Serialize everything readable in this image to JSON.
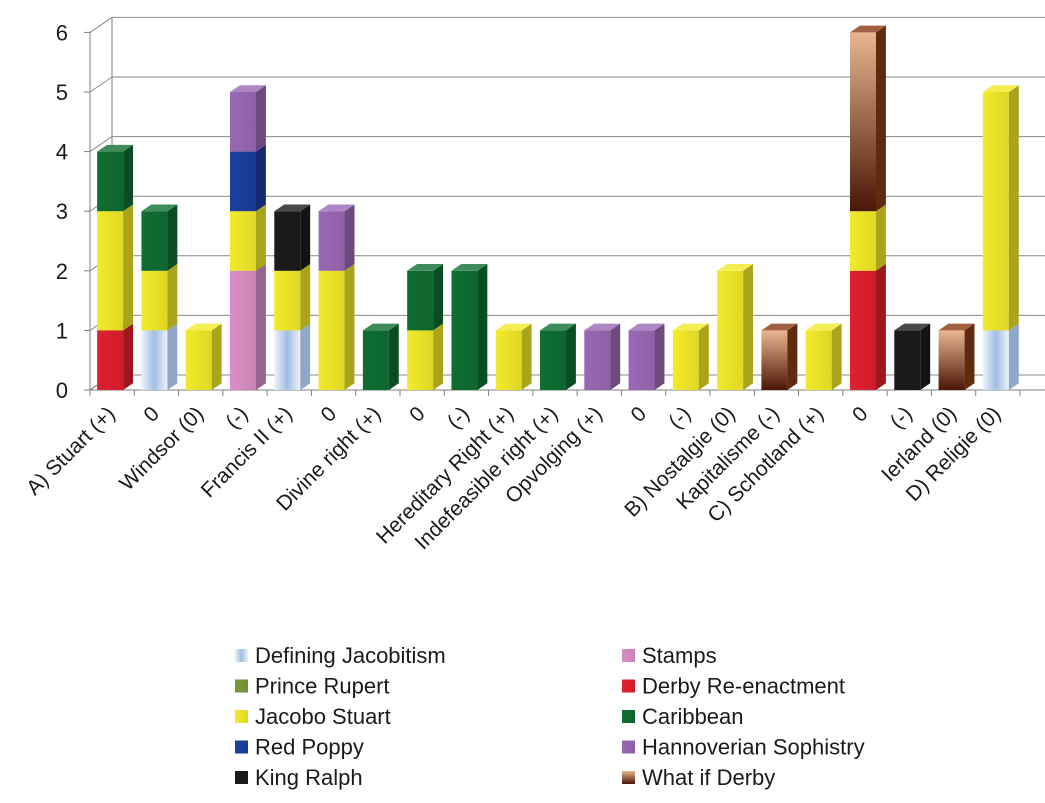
{
  "chart_data": {
    "type": "bar",
    "stacked": true,
    "three_d": true,
    "categories": [
      "A) Stuart (+)",
      "0",
      "Windsor (0)",
      "(-)",
      "Francis II (+)",
      "0",
      "Divine right (+)",
      "0",
      "(-)",
      "Hereditary Right (+)",
      "Indefeasible right (+)",
      "Opvolging (+)",
      "0",
      "(-)",
      "B) Nostalgie (0)",
      "Kapitalisme (-)",
      "C) Schotland (+)",
      "0",
      "(-)",
      "Ierland (0)",
      "D) Religie (0)"
    ],
    "ylim": [
      0,
      6
    ],
    "yticks": [
      0,
      1,
      2,
      3,
      4,
      5,
      6
    ],
    "grid": true,
    "legend_position": "bottom",
    "series": [
      {
        "name": "Defining Jacobitism",
        "color": "#c9d9ee",
        "values": [
          0,
          1,
          0,
          0,
          1,
          0,
          0,
          0,
          0,
          0,
          0,
          0,
          0,
          0,
          0,
          0,
          0,
          0,
          0,
          0,
          1
        ]
      },
      {
        "name": "Stamps",
        "color": "#d98fc6",
        "values": [
          0,
          0,
          0,
          2,
          0,
          0,
          0,
          0,
          0,
          0,
          0,
          0,
          0,
          0,
          0,
          0,
          0,
          0,
          0,
          0,
          0
        ]
      },
      {
        "name": "Prince Rupert",
        "color": "#7a9a3a",
        "values": [
          0,
          0,
          0,
          0,
          0,
          0,
          0,
          0,
          0,
          0,
          0,
          0,
          0,
          0,
          0,
          0,
          0,
          0,
          0,
          0,
          0
        ]
      },
      {
        "name": "Derby Re-enactment",
        "color": "#e0202e",
        "values": [
          1,
          0,
          0,
          0,
          0,
          0,
          0,
          0,
          0,
          0,
          0,
          0,
          0,
          0,
          0,
          0,
          0,
          2,
          0,
          0,
          0
        ]
      },
      {
        "name": "Jacobo Stuart",
        "color": "#f2ea28",
        "values": [
          2,
          1,
          1,
          1,
          1,
          2,
          0,
          1,
          0,
          1,
          0,
          0,
          0,
          1,
          2,
          0,
          1,
          1,
          0,
          0,
          4
        ]
      },
      {
        "name": "Caribbean",
        "color": "#0f6e32",
        "values": [
          1,
          1,
          0,
          0,
          0,
          0,
          1,
          1,
          2,
          0,
          1,
          0,
          0,
          0,
          0,
          0,
          0,
          0,
          0,
          0,
          0
        ]
      },
      {
        "name": "Red Poppy",
        "color": "#1c3f9e",
        "values": [
          0,
          0,
          0,
          1,
          0,
          0,
          0,
          0,
          0,
          0,
          0,
          0,
          0,
          0,
          0,
          0,
          0,
          0,
          0,
          0,
          0
        ]
      },
      {
        "name": "Hannoverian Sophistry",
        "color": "#9a68b6",
        "values": [
          0,
          0,
          0,
          1,
          0,
          1,
          0,
          0,
          0,
          0,
          0,
          1,
          1,
          0,
          0,
          0,
          0,
          0,
          0,
          0,
          0
        ]
      },
      {
        "name": "King Ralph",
        "color": "#1b1b1b",
        "values": [
          0,
          0,
          0,
          0,
          1,
          0,
          0,
          0,
          0,
          0,
          0,
          0,
          0,
          0,
          0,
          0,
          0,
          0,
          1,
          0,
          0
        ]
      },
      {
        "name": "What if Derby",
        "color": "#8a3a12",
        "values": [
          0,
          0,
          0,
          0,
          0,
          0,
          0,
          0,
          0,
          0,
          0,
          0,
          0,
          0,
          0,
          1,
          0,
          3,
          0,
          1,
          0
        ]
      }
    ]
  }
}
